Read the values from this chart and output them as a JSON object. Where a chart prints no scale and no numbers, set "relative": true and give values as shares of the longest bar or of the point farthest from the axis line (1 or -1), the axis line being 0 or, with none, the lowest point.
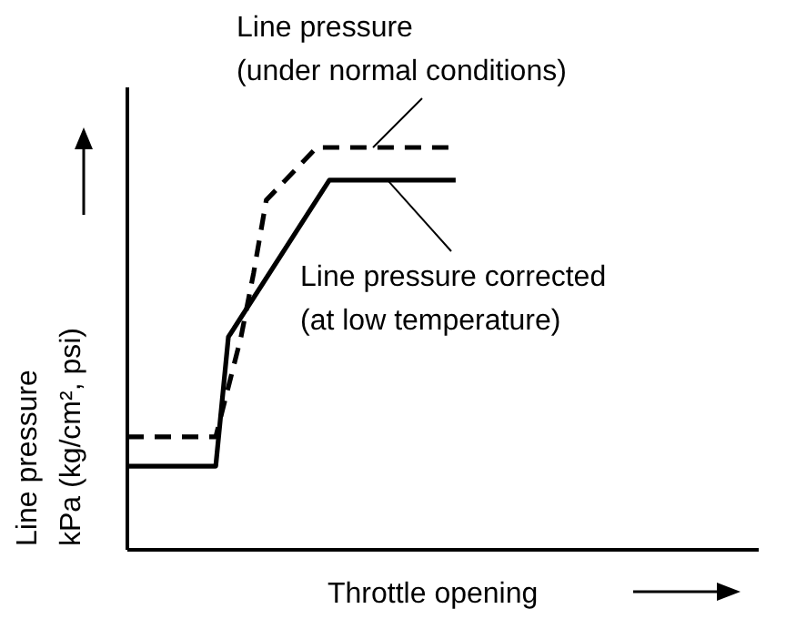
{
  "chart_data": {
    "type": "line",
    "relative": true,
    "xlabel": "Throttle opening",
    "ylabel": "Line pressure\nkPa (kg/cm², psi)",
    "categories": [
      null,
      null,
      null,
      null,
      null,
      null,
      null,
      null,
      null,
      null,
      null,
      null,
      null,
      null,
      null,
      null,
      null,
      null,
      null,
      null,
      null,
      null,
      null,
      null,
      null,
      null,
      null,
      null,
      null,
      null,
      null,
      null,
      null,
      null,
      null,
      null,
      null,
      null,
      null,
      null,
      null,
      null,
      null,
      null,
      null,
      null,
      null,
      null,
      null,
      null,
      null
    ],
    "series": [
      {
        "color": "#000000",
        "line_style": "dashed",
        "values": [
          0.281,
          null,
          null,
          null,
          null,
          null,
          null,
          0.281,
          null,
          0.529,
          0.688,
          0.869,
          null,
          null,
          null,
          1,
          null,
          null,
          null,
          null,
          null,
          null,
          null,
          null,
          null,
          null,
          1,
          null,
          null,
          null,
          null,
          null,
          null,
          null,
          null,
          null,
          null,
          null,
          null,
          null,
          null,
          null,
          null,
          null,
          null,
          null,
          null,
          null,
          null,
          null,
          null
        ]
      },
      {
        "color": "#000000",
        "line_style": "solid",
        "values": [
          0.208,
          null,
          null,
          null,
          null,
          null,
          null,
          0.208,
          0.529,
          null,
          null,
          null,
          null,
          null,
          null,
          null,
          0.919,
          null,
          null,
          null,
          null,
          null,
          null,
          null,
          null,
          null,
          0.919,
          null,
          null,
          null,
          null,
          null,
          null,
          null,
          null,
          null,
          null,
          null,
          null,
          null,
          null,
          null,
          null,
          null,
          null,
          null,
          null,
          null,
          null,
          null,
          null
        ]
      }
    ],
    "annotations": [
      {
        "text": "Line pressure\n(under normal conditions)",
        "y": 1
      },
      {
        "text": "Line pressure corrected\n(at low temperature)",
        "y": 0.919
      }
    ]
  }
}
